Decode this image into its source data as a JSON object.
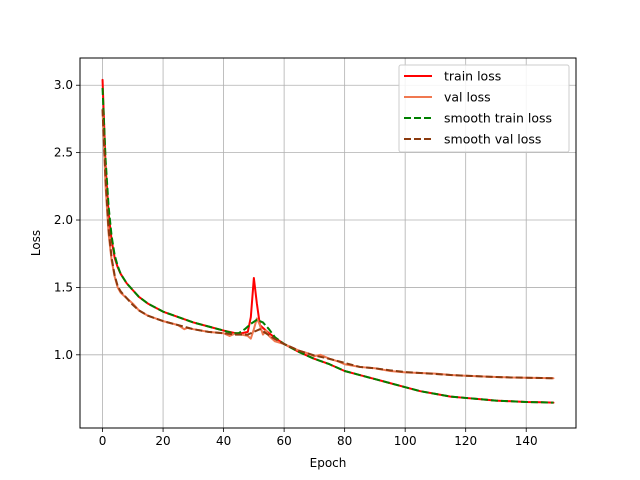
{
  "chart_data": {
    "type": "line",
    "title": "",
    "xlabel": "Epoch",
    "ylabel": "Loss",
    "xlim": [
      -7.45,
      156.45
    ],
    "ylim": [
      0.457,
      3.202
    ],
    "xticks": [
      0,
      20,
      40,
      60,
      80,
      100,
      120,
      140
    ],
    "yticks": [
      1.0,
      1.5,
      2.0,
      2.5,
      3.0
    ],
    "xtick_labels": [
      "0",
      "20",
      "40",
      "60",
      "80",
      "100",
      "120",
      "140"
    ],
    "ytick_labels": [
      "1.0",
      "1.5",
      "2.0",
      "2.5",
      "3.0"
    ],
    "grid": true,
    "legend_position": "top-right",
    "series": [
      {
        "name": "train loss",
        "color": "#ff0000",
        "style": "solid",
        "points": [
          [
            0,
            3.04
          ],
          [
            1,
            2.4
          ],
          [
            2,
            2.05
          ],
          [
            3,
            1.85
          ],
          [
            4,
            1.72
          ],
          [
            5,
            1.65
          ],
          [
            6,
            1.6
          ],
          [
            8,
            1.53
          ],
          [
            10,
            1.48
          ],
          [
            12,
            1.43
          ],
          [
            15,
            1.38
          ],
          [
            20,
            1.32
          ],
          [
            25,
            1.28
          ],
          [
            30,
            1.24
          ],
          [
            35,
            1.21
          ],
          [
            40,
            1.18
          ],
          [
            44,
            1.16
          ],
          [
            46,
            1.16
          ],
          [
            48,
            1.17
          ],
          [
            49,
            1.28
          ],
          [
            50,
            1.57
          ],
          [
            51,
            1.38
          ],
          [
            52,
            1.22
          ],
          [
            53,
            1.2
          ],
          [
            55,
            1.16
          ],
          [
            58,
            1.11
          ],
          [
            60,
            1.08
          ],
          [
            65,
            1.02
          ],
          [
            70,
            0.97
          ],
          [
            75,
            0.93
          ],
          [
            80,
            0.88
          ],
          [
            85,
            0.85
          ],
          [
            90,
            0.82
          ],
          [
            95,
            0.79
          ],
          [
            100,
            0.76
          ],
          [
            105,
            0.73
          ],
          [
            110,
            0.71
          ],
          [
            115,
            0.69
          ],
          [
            120,
            0.68
          ],
          [
            125,
            0.67
          ],
          [
            130,
            0.66
          ],
          [
            135,
            0.655
          ],
          [
            140,
            0.65
          ],
          [
            145,
            0.648
          ],
          [
            149,
            0.645
          ]
        ]
      },
      {
        "name": "val loss",
        "color": "#f07850",
        "style": "solid",
        "points": [
          [
            0,
            2.82
          ],
          [
            1,
            2.25
          ],
          [
            2,
            1.9
          ],
          [
            3,
            1.7
          ],
          [
            4,
            1.58
          ],
          [
            5,
            1.5
          ],
          [
            6,
            1.46
          ],
          [
            8,
            1.42
          ],
          [
            10,
            1.38
          ],
          [
            12,
            1.33
          ],
          [
            15,
            1.29
          ],
          [
            20,
            1.25
          ],
          [
            25,
            1.22
          ],
          [
            27,
            1.19
          ],
          [
            28,
            1.2
          ],
          [
            30,
            1.19
          ],
          [
            35,
            1.17
          ],
          [
            40,
            1.16
          ],
          [
            42,
            1.14
          ],
          [
            44,
            1.16
          ],
          [
            46,
            1.15
          ],
          [
            48,
            1.14
          ],
          [
            49,
            1.12
          ],
          [
            50,
            1.19
          ],
          [
            51,
            1.27
          ],
          [
            52,
            1.22
          ],
          [
            53,
            1.15
          ],
          [
            54,
            1.18
          ],
          [
            55,
            1.14
          ],
          [
            57,
            1.1
          ],
          [
            60,
            1.08
          ],
          [
            63,
            1.05
          ],
          [
            65,
            1.03
          ],
          [
            68,
            1.01
          ],
          [
            70,
            0.99
          ],
          [
            72,
            1.0
          ],
          [
            75,
            0.97
          ],
          [
            78,
            0.95
          ],
          [
            80,
            0.93
          ],
          [
            85,
            0.91
          ],
          [
            90,
            0.9
          ],
          [
            95,
            0.88
          ],
          [
            100,
            0.87
          ],
          [
            105,
            0.865
          ],
          [
            110,
            0.86
          ],
          [
            115,
            0.85
          ],
          [
            120,
            0.845
          ],
          [
            125,
            0.84
          ],
          [
            130,
            0.835
          ],
          [
            135,
            0.832
          ],
          [
            140,
            0.83
          ],
          [
            145,
            0.828
          ],
          [
            149,
            0.826
          ]
        ]
      },
      {
        "name": "smooth train loss",
        "color": "#008000",
        "style": "dashed",
        "points": [
          [
            0,
            2.98
          ],
          [
            1,
            2.45
          ],
          [
            2,
            2.1
          ],
          [
            3,
            1.88
          ],
          [
            4,
            1.74
          ],
          [
            5,
            1.66
          ],
          [
            6,
            1.6
          ],
          [
            8,
            1.53
          ],
          [
            10,
            1.48
          ],
          [
            12,
            1.43
          ],
          [
            15,
            1.38
          ],
          [
            20,
            1.32
          ],
          [
            25,
            1.28
          ],
          [
            30,
            1.24
          ],
          [
            35,
            1.21
          ],
          [
            40,
            1.18
          ],
          [
            43,
            1.16
          ],
          [
            45,
            1.16
          ],
          [
            47,
            1.19
          ],
          [
            49,
            1.23
          ],
          [
            51,
            1.26
          ],
          [
            53,
            1.24
          ],
          [
            55,
            1.19
          ],
          [
            57,
            1.13
          ],
          [
            60,
            1.08
          ],
          [
            65,
            1.02
          ],
          [
            70,
            0.97
          ],
          [
            75,
            0.93
          ],
          [
            80,
            0.88
          ],
          [
            85,
            0.85
          ],
          [
            90,
            0.82
          ],
          [
            95,
            0.79
          ],
          [
            100,
            0.76
          ],
          [
            105,
            0.73
          ],
          [
            110,
            0.71
          ],
          [
            115,
            0.69
          ],
          [
            120,
            0.68
          ],
          [
            125,
            0.67
          ],
          [
            130,
            0.66
          ],
          [
            135,
            0.655
          ],
          [
            140,
            0.65
          ],
          [
            145,
            0.648
          ],
          [
            149,
            0.645
          ]
        ]
      },
      {
        "name": "smooth val loss",
        "color": "#8b3a0e",
        "style": "dashed",
        "points": [
          [
            0,
            2.82
          ],
          [
            1,
            2.3
          ],
          [
            2,
            1.93
          ],
          [
            3,
            1.72
          ],
          [
            4,
            1.59
          ],
          [
            5,
            1.51
          ],
          [
            6,
            1.47
          ],
          [
            8,
            1.42
          ],
          [
            10,
            1.37
          ],
          [
            12,
            1.33
          ],
          [
            15,
            1.29
          ],
          [
            20,
            1.25
          ],
          [
            25,
            1.22
          ],
          [
            30,
            1.19
          ],
          [
            35,
            1.17
          ],
          [
            40,
            1.16
          ],
          [
            44,
            1.15
          ],
          [
            48,
            1.15
          ],
          [
            50,
            1.17
          ],
          [
            52,
            1.19
          ],
          [
            54,
            1.16
          ],
          [
            56,
            1.13
          ],
          [
            60,
            1.08
          ],
          [
            63,
            1.05
          ],
          [
            65,
            1.03
          ],
          [
            70,
            0.995
          ],
          [
            75,
            0.97
          ],
          [
            80,
            0.94
          ],
          [
            85,
            0.91
          ],
          [
            90,
            0.9
          ],
          [
            95,
            0.885
          ],
          [
            100,
            0.872
          ],
          [
            105,
            0.865
          ],
          [
            110,
            0.858
          ],
          [
            115,
            0.85
          ],
          [
            120,
            0.845
          ],
          [
            125,
            0.84
          ],
          [
            130,
            0.835
          ],
          [
            135,
            0.832
          ],
          [
            140,
            0.83
          ],
          [
            145,
            0.828
          ],
          [
            149,
            0.826
          ]
        ]
      }
    ]
  }
}
